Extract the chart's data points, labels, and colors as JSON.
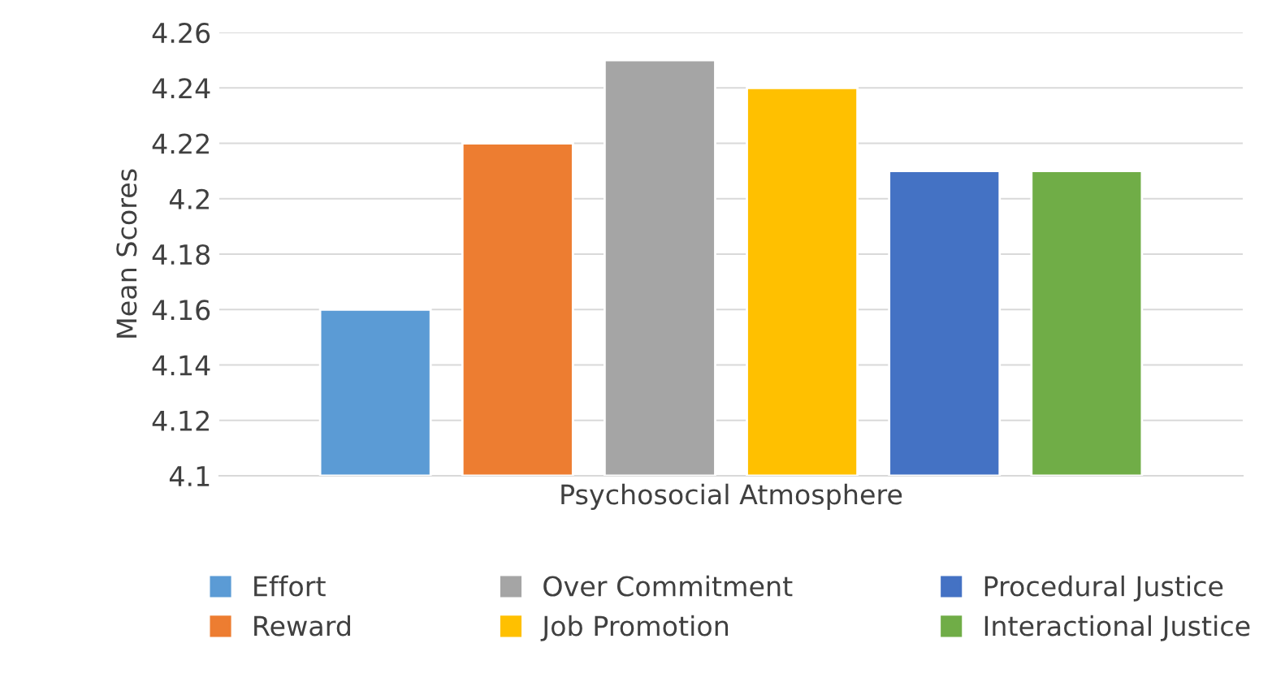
{
  "chart_data": {
    "type": "bar",
    "ylabel": "Mean Scores",
    "categories": [
      "Psychosocial Atmosphere"
    ],
    "series": [
      {
        "name": "Effort",
        "color": "#5b9bd5",
        "values": [
          4.16
        ]
      },
      {
        "name": "Reward",
        "color": "#ed7d31",
        "values": [
          4.22
        ]
      },
      {
        "name": "Over Commitment",
        "color": "#a5a5a5",
        "values": [
          4.25
        ]
      },
      {
        "name": "Job Promotion",
        "color": "#ffc000",
        "values": [
          4.24
        ]
      },
      {
        "name": "Procedural Justice",
        "color": "#4472c4",
        "values": [
          4.21
        ]
      },
      {
        "name": "Interactional Justice",
        "color": "#70ad47",
        "values": [
          4.21
        ]
      }
    ],
    "ylim": [
      4.1,
      4.26
    ],
    "yticks": [
      4.1,
      4.12,
      4.14,
      4.16,
      4.18,
      4.2,
      4.22,
      4.24,
      4.26
    ],
    "grid": "y",
    "legend": "bottom"
  }
}
